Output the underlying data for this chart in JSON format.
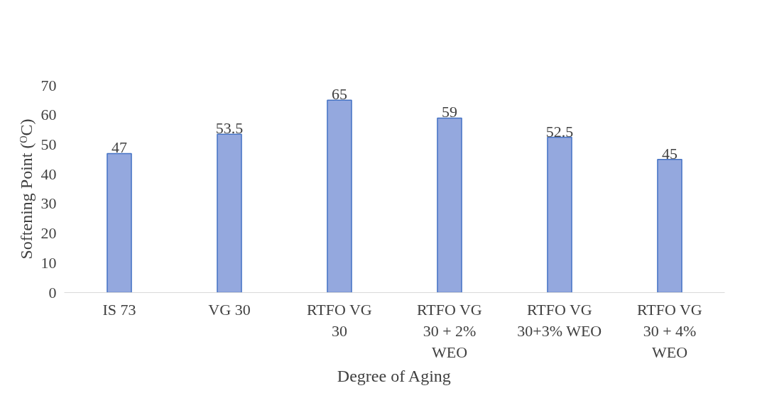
{
  "chart_data": {
    "type": "bar",
    "xlabel": "Degree of Aging",
    "ylabel": "Softening Point (ᴼC)",
    "categories": [
      "IS 73",
      "VG 30",
      "RTFO VG 30",
      "RTFO VG 30 + 2% WEO",
      "RTFO VG 30+3% WEO",
      "RTFO VG 30 + 4% WEO"
    ],
    "values": [
      47,
      53.5,
      65,
      59,
      52.5,
      45
    ],
    "color": "#94a8de",
    "ylim": [
      0,
      70
    ],
    "yticks": [
      0,
      10,
      20,
      30,
      40,
      50,
      60,
      70
    ],
    "grid": false,
    "data_labels": true
  }
}
